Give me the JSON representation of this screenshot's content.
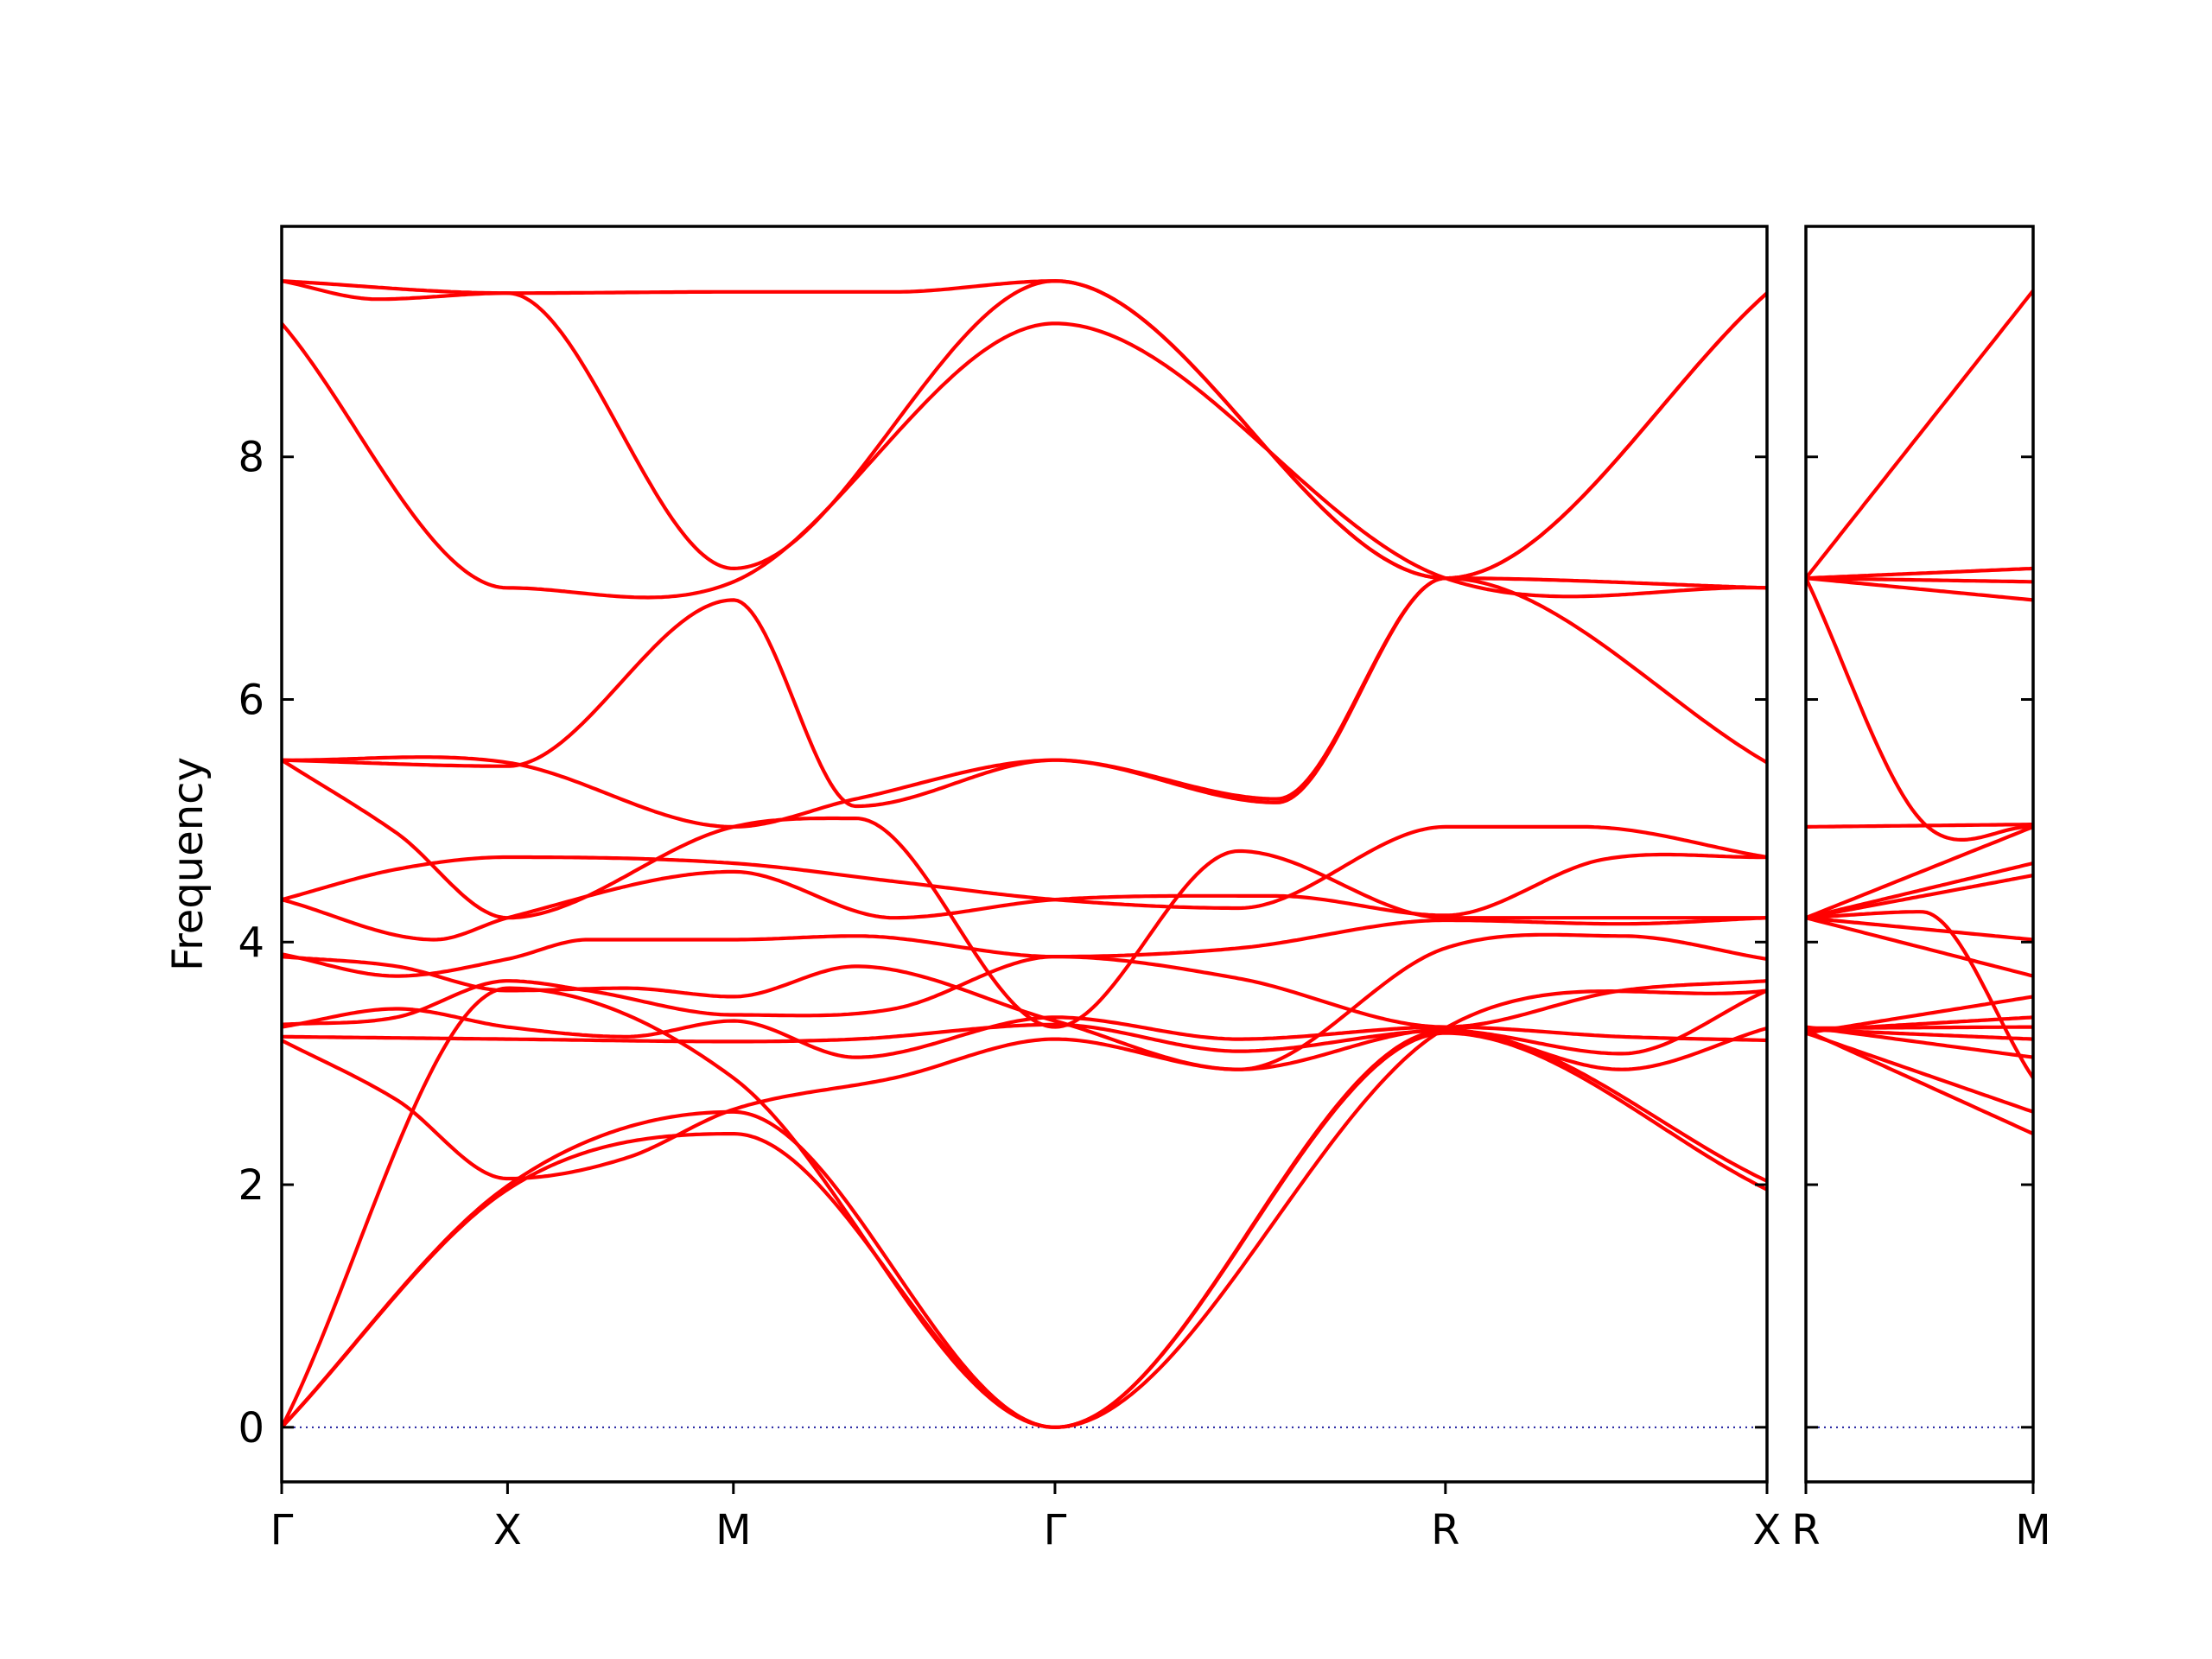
{
  "chart_data": {
    "type": "line",
    "ylabel": "Frequency",
    "ylim": [
      -0.45,
      9.9
    ],
    "yticks": [
      0,
      2,
      4,
      6,
      8
    ],
    "grid": false,
    "legend": "none",
    "colors": {
      "bands": "#ff0000",
      "zero_line": "#1f1f9f",
      "frame": "#000000"
    },
    "panels": [
      {
        "xlim": [
          0,
          3.88
        ],
        "high_symmetry_points": [
          {
            "label": "Γ",
            "x": 0.0
          },
          {
            "label": "X",
            "x": 0.59
          },
          {
            "label": "M",
            "x": 1.18
          },
          {
            "label": "Γ",
            "x": 2.02
          },
          {
            "label": "R",
            "x": 3.04
          },
          {
            "label": "X",
            "x": 3.88
          }
        ],
        "series": [
          {
            "x": [
              0,
              0.59,
              1.18,
              2.02,
              3.04,
              3.88
            ],
            "y": [
              0.0,
              1.96,
              2.42,
              0.0,
              3.25,
              1.96
            ]
          },
          {
            "x": [
              0,
              0.59,
              1.18,
              2.02,
              3.04,
              3.88
            ],
            "y": [
              0.0,
              1.99,
              2.6,
              0.0,
              3.27,
              2.03
            ]
          },
          {
            "x": [
              0,
              0.59,
              1.18,
              2.02,
              3.04,
              3.88
            ],
            "y": [
              0.0,
              3.62,
              2.88,
              0.0,
              3.29,
              3.6
            ]
          },
          {
            "x": [
              0,
              0.3,
              0.59,
              0.9,
              1.18,
              1.6,
              2.02,
              2.5,
              3.04,
              3.5,
              3.88
            ],
            "y": [
              3.19,
              2.7,
              2.05,
              2.22,
              2.62,
              2.88,
              3.2,
              2.95,
              3.28,
              2.95,
              3.29
            ]
          },
          {
            "x": [
              0,
              0.59,
              1.18,
              1.5,
              2.02,
              2.5,
              3.04,
              3.5,
              3.88
            ],
            "y": [
              3.22,
              3.2,
              3.18,
              3.2,
              3.32,
              3.1,
              3.27,
              3.08,
              3.6
            ]
          },
          {
            "x": [
              0,
              0.3,
              0.59,
              0.9,
              1.18,
              1.5,
              2.02,
              2.5,
              3.04,
              3.5,
              3.88
            ],
            "y": [
              3.3,
              3.45,
              3.3,
              3.22,
              3.35,
              3.05,
              3.38,
              3.2,
              3.3,
              3.22,
              3.19
            ]
          },
          {
            "x": [
              0,
              0.3,
              0.59,
              0.8,
              1.18,
              1.6,
              2.02,
              2.5,
              3.04,
              3.5,
              3.88
            ],
            "y": [
              3.32,
              3.38,
              3.68,
              3.6,
              3.4,
              3.45,
              3.88,
              3.7,
              3.3,
              3.6,
              3.68
            ]
          },
          {
            "x": [
              0,
              0.3,
              0.59,
              0.9,
              1.18,
              1.5,
              2.02,
              2.5,
              3.04,
              3.5,
              3.88
            ],
            "y": [
              3.88,
              3.8,
              3.6,
              3.62,
              3.55,
              3.8,
              3.35,
              2.95,
              3.95,
              4.05,
              3.86
            ]
          },
          {
            "x": [
              0,
              0.3,
              0.59,
              0.8,
              1.18,
              1.5,
              2.02,
              2.5,
              3.04,
              3.5,
              3.88
            ],
            "y": [
              3.9,
              3.72,
              3.86,
              4.02,
              4.02,
              4.05,
              3.88,
              3.95,
              4.18,
              4.15,
              4.2
            ]
          },
          {
            "x": [
              0,
              0.4,
              0.59,
              1.18,
              1.6,
              2.02,
              2.6,
              3.04,
              3.45,
              3.88
            ],
            "y": [
              4.35,
              4.02,
              4.2,
              4.58,
              4.2,
              4.35,
              4.38,
              4.22,
              4.68,
              4.7
            ]
          },
          {
            "x": [
              0,
              0.3,
              0.59,
              1.18,
              1.6,
              2.02,
              2.5,
              3.04,
              3.4,
              3.88
            ],
            "y": [
              4.35,
              4.6,
              4.7,
              4.65,
              4.5,
              4.35,
              4.28,
              4.95,
              4.95,
              4.7
            ]
          },
          {
            "x": [
              0,
              0.3,
              0.59,
              1.18,
              1.5,
              2.02,
              2.5,
              3.04,
              3.88
            ],
            "y": [
              5.5,
              4.9,
              4.2,
              4.95,
              5.02,
              3.3,
              4.75,
              4.2,
              4.2
            ]
          },
          {
            "x": [
              0,
              0.59,
              1.18,
              1.5,
              2.02,
              2.6,
              3.04,
              3.88
            ],
            "y": [
              5.5,
              5.48,
              4.95,
              5.18,
              5.5,
              5.15,
              7.0,
              5.48
            ]
          },
          {
            "x": [
              0,
              0.59,
              1.18,
              1.5,
              2.02,
              2.6,
              3.04,
              3.88
            ],
            "y": [
              5.5,
              5.45,
              6.82,
              5.12,
              5.5,
              5.18,
              7.0,
              6.92
            ]
          },
          {
            "x": [
              0,
              0.59,
              1.18,
              2.02,
              3.04,
              3.88
            ],
            "y": [
              9.1,
              6.92,
              6.97,
              9.1,
              7.0,
              6.92
            ]
          },
          {
            "x": [
              0,
              0.25,
              0.59,
              1.18,
              2.02,
              3.04,
              3.88
            ],
            "y": [
              9.45,
              9.3,
              9.35,
              7.08,
              9.45,
              7.0,
              9.35
            ]
          },
          {
            "x": [
              0,
              0.59,
              1.18,
              1.6,
              2.02,
              3.04,
              3.88
            ],
            "y": [
              9.45,
              9.35,
              9.36,
              9.36,
              9.45,
              7.0,
              9.35
            ]
          }
        ]
      },
      {
        "xlim": [
          0,
          0.59
        ],
        "high_symmetry_points": [
          {
            "label": "R",
            "x": 0.0
          },
          {
            "label": "M",
            "x": 0.59
          }
        ],
        "series": [
          {
            "x": [
              0,
              0.59
            ],
            "y": [
              7.0,
              9.37
            ]
          },
          {
            "x": [
              0,
              0.59
            ],
            "y": [
              7.0,
              7.08
            ]
          },
          {
            "x": [
              0,
              0.59
            ],
            "y": [
              7.0,
              6.97
            ]
          },
          {
            "x": [
              0,
              0.59
            ],
            "y": [
              7.0,
              6.82
            ]
          },
          {
            "x": [
              0,
              0.3,
              0.59
            ],
            "y": [
              7.0,
              5.0,
              4.95
            ]
          },
          {
            "x": [
              0,
              0.59
            ],
            "y": [
              4.95,
              4.97
            ]
          },
          {
            "x": [
              0,
              0.59
            ],
            "y": [
              4.2,
              4.95
            ]
          },
          {
            "x": [
              0,
              0.59
            ],
            "y": [
              4.2,
              4.65
            ]
          },
          {
            "x": [
              0,
              0.59
            ],
            "y": [
              4.2,
              4.55
            ]
          },
          {
            "x": [
              0,
              0.59
            ],
            "y": [
              4.2,
              4.02
            ]
          },
          {
            "x": [
              0,
              0.3,
              0.59
            ],
            "y": [
              4.2,
              4.25,
              2.88
            ]
          },
          {
            "x": [
              0,
              0.59
            ],
            "y": [
              4.2,
              3.72
            ]
          },
          {
            "x": [
              0,
              0.59
            ],
            "y": [
              3.25,
              3.55
            ]
          },
          {
            "x": [
              0,
              0.59
            ],
            "y": [
              3.27,
              3.38
            ]
          },
          {
            "x": [
              0,
              0.59
            ],
            "y": [
              3.29,
              3.3
            ]
          },
          {
            "x": [
              0,
              0.59
            ],
            "y": [
              3.28,
              3.2
            ]
          },
          {
            "x": [
              0,
              0.59
            ],
            "y": [
              3.3,
              3.05
            ]
          },
          {
            "x": [
              0,
              0.59
            ],
            "y": [
              3.25,
              2.6
            ]
          },
          {
            "x": [
              0,
              0.59
            ],
            "y": [
              3.27,
              2.42
            ]
          }
        ]
      }
    ]
  }
}
